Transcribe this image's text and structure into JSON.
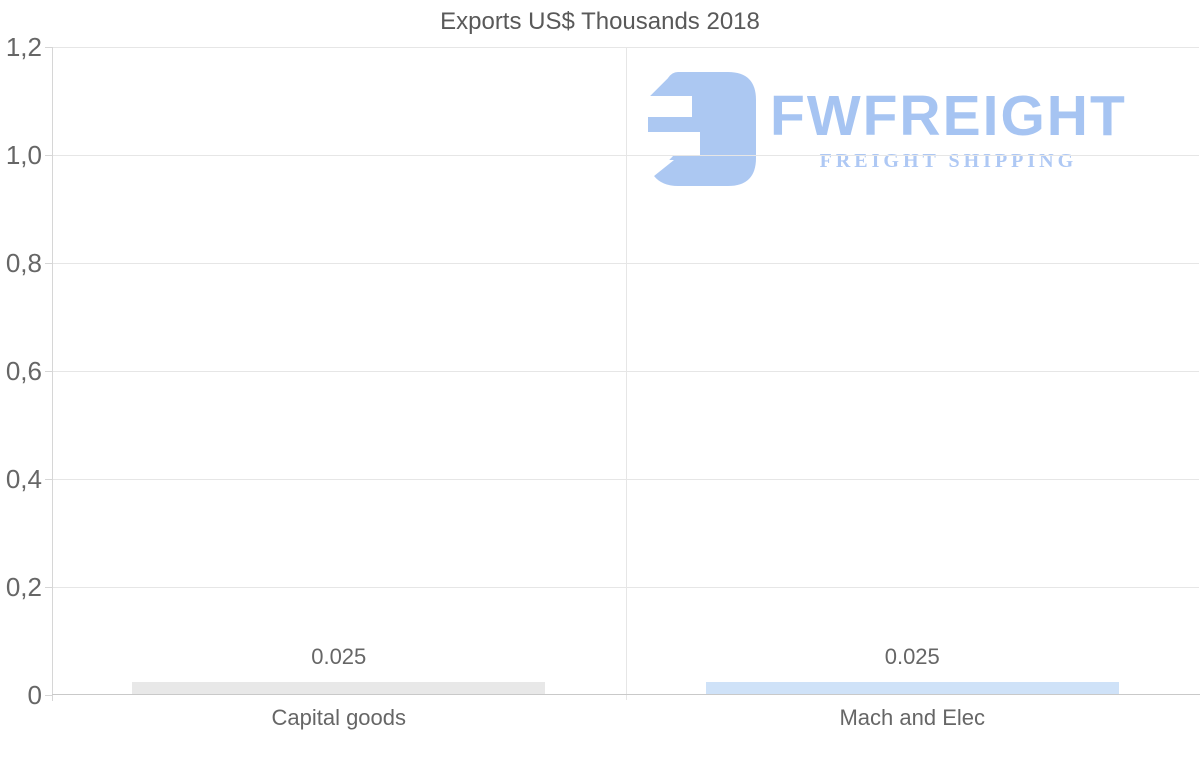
{
  "title": "Exports US$ Thousands 2018",
  "logo": {
    "name": "FWFREIGHT",
    "tagline": "FREIGHT SHIPPING",
    "icon": "fwfreight-mark",
    "color": "#a6c4f2"
  },
  "chart_data": {
    "type": "bar",
    "title": "Exports US$ Thousands 2018",
    "categories": [
      "Capital goods",
      "Mach and Elec"
    ],
    "values": [
      0.025,
      0.025
    ],
    "value_labels": [
      "0.025",
      "0.025"
    ],
    "bar_colors": [
      "#e8e8e8",
      "#cfe2f8"
    ],
    "xlabel": "",
    "ylabel": "",
    "ylim": [
      0,
      1.2
    ],
    "ytick_values": [
      0,
      0.2,
      0.4,
      0.6,
      0.8,
      1.0,
      1.2
    ],
    "ytick_labels": [
      "0",
      "0,2",
      "0,4",
      "0,6",
      "0,8",
      "1,0",
      "1,2"
    ],
    "grid": "horizontal",
    "legend": "none",
    "decimal_separator_axis": ",",
    "bar_width_fraction": 0.72
  },
  "colors": {
    "text": "#595959",
    "label": "#666666",
    "grid": "#e6e6e6",
    "axis": "#d6d6d6",
    "baseline": "#c9c9c9"
  }
}
